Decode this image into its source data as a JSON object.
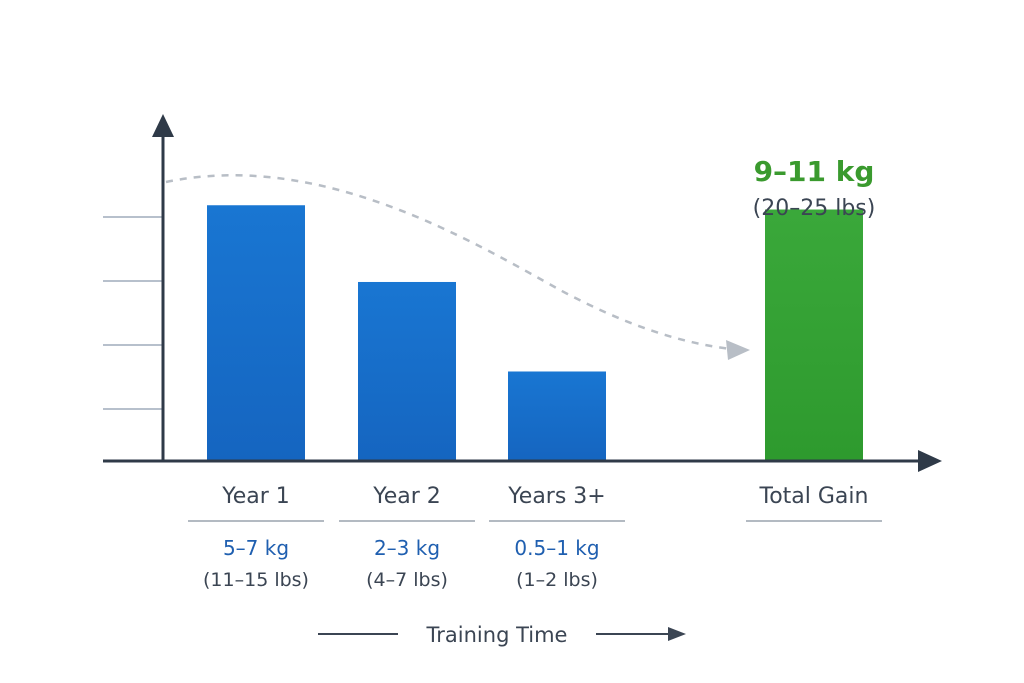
{
  "chart_data": {
    "type": "bar",
    "categories": [
      "Year 1",
      "Year 2",
      "Years 3+",
      "Total Gain"
    ],
    "values": [
      6,
      4.2,
      2.1,
      5.9
    ],
    "series": [
      {
        "values": [
          6,
          4.2,
          2.1,
          5.9
        ]
      }
    ],
    "kg_labels": [
      "5–7 kg",
      "2–3 kg",
      "0.5–1 kg",
      "9–11 kg"
    ],
    "lbs_labels": [
      "(11–15 lbs)",
      "(4–7 lbs)",
      "(1–2 lbs)",
      "(20–25 lbs)"
    ],
    "xlabel": "Training Time",
    "ylabel": "",
    "ylim": [
      0,
      8
    ],
    "grid": false,
    "colors": {
      "bar": "#1565c0",
      "bar_light": "#1976d2",
      "total": "#2e9a2e",
      "total_light": "#3aa83a",
      "kg_text": "#1f5fb0",
      "total_text": "#3a9a2e",
      "axis": "#2f3a48",
      "tick": "#b7c0cc",
      "divider": "#9aa3ad",
      "arrow": "#b8bec6"
    }
  }
}
